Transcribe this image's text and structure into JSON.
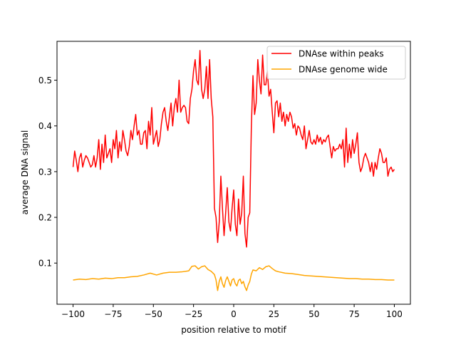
{
  "chart_data": {
    "type": "line",
    "xlabel": "position relative to motif",
    "ylabel": "average DNA signal",
    "xlim": [
      -110,
      110
    ],
    "ylim": [
      0.01,
      0.585
    ],
    "xticks": [
      -100,
      -75,
      -50,
      -25,
      0,
      25,
      50,
      75,
      100
    ],
    "yticks": [
      0.1,
      0.2,
      0.3,
      0.4,
      0.5
    ],
    "ytick_labels": [
      "0.1",
      "0.2",
      "0.3",
      "0.4",
      "0.5"
    ],
    "grid": false,
    "legend": {
      "placement": "top-right"
    },
    "series": [
      {
        "name": "DNAse within peaks",
        "color": "#ff0000",
        "points": [
          [
            -100,
            0.31
          ],
          [
            -99,
            0.345
          ],
          [
            -98,
            0.325
          ],
          [
            -97,
            0.3
          ],
          [
            -96,
            0.33
          ],
          [
            -95,
            0.34
          ],
          [
            -94,
            0.31
          ],
          [
            -93,
            0.325
          ],
          [
            -92,
            0.335
          ],
          [
            -91,
            0.33
          ],
          [
            -90,
            0.32
          ],
          [
            -89,
            0.31
          ],
          [
            -88,
            0.315
          ],
          [
            -87,
            0.335
          ],
          [
            -86,
            0.31
          ],
          [
            -85,
            0.33
          ],
          [
            -84,
            0.37
          ],
          [
            -83,
            0.305
          ],
          [
            -82,
            0.36
          ],
          [
            -81,
            0.32
          ],
          [
            -80,
            0.38
          ],
          [
            -79,
            0.33
          ],
          [
            -78,
            0.34
          ],
          [
            -77,
            0.35
          ],
          [
            -76,
            0.32
          ],
          [
            -75,
            0.37
          ],
          [
            -74,
            0.35
          ],
          [
            -73,
            0.39
          ],
          [
            -72,
            0.33
          ],
          [
            -71,
            0.365
          ],
          [
            -70,
            0.345
          ],
          [
            -69,
            0.39
          ],
          [
            -68,
            0.37
          ],
          [
            -67,
            0.345
          ],
          [
            -66,
            0.335
          ],
          [
            -65,
            0.355
          ],
          [
            -64,
            0.39
          ],
          [
            -63,
            0.37
          ],
          [
            -62,
            0.4
          ],
          [
            -61,
            0.425
          ],
          [
            -60,
            0.38
          ],
          [
            -59,
            0.39
          ],
          [
            -58,
            0.36
          ],
          [
            -57,
            0.36
          ],
          [
            -56,
            0.385
          ],
          [
            -55,
            0.39
          ],
          [
            -54,
            0.35
          ],
          [
            -53,
            0.41
          ],
          [
            -52,
            0.38
          ],
          [
            -51,
            0.44
          ],
          [
            -50,
            0.36
          ],
          [
            -49,
            0.375
          ],
          [
            -48,
            0.39
          ],
          [
            -47,
            0.355
          ],
          [
            -46,
            0.37
          ],
          [
            -45,
            0.405
          ],
          [
            -44,
            0.43
          ],
          [
            -43,
            0.44
          ],
          [
            -42,
            0.41
          ],
          [
            -41,
            0.39
          ],
          [
            -40,
            0.42
          ],
          [
            -39,
            0.45
          ],
          [
            -38,
            0.4
          ],
          [
            -37,
            0.44
          ],
          [
            -36,
            0.46
          ],
          [
            -35,
            0.43
          ],
          [
            -34,
            0.5
          ],
          [
            -33,
            0.43
          ],
          [
            -32,
            0.44
          ],
          [
            -31,
            0.445
          ],
          [
            -30,
            0.44
          ],
          [
            -29,
            0.41
          ],
          [
            -28,
            0.405
          ],
          [
            -27,
            0.46
          ],
          [
            -26,
            0.48
          ],
          [
            -25,
            0.52
          ],
          [
            -24,
            0.545
          ],
          [
            -23,
            0.5
          ],
          [
            -22,
            0.49
          ],
          [
            -21,
            0.565
          ],
          [
            -20,
            0.48
          ],
          [
            -19,
            0.46
          ],
          [
            -18,
            0.48
          ],
          [
            -17,
            0.53
          ],
          [
            -16,
            0.46
          ],
          [
            -15,
            0.545
          ],
          [
            -14,
            0.46
          ],
          [
            -13,
            0.42
          ],
          [
            -12,
            0.22
          ],
          [
            -11,
            0.2
          ],
          [
            -10,
            0.145
          ],
          [
            -9,
            0.19
          ],
          [
            -8,
            0.29
          ],
          [
            -7,
            0.22
          ],
          [
            -6,
            0.16
          ],
          [
            -5,
            0.21
          ],
          [
            -4,
            0.265
          ],
          [
            -3,
            0.19
          ],
          [
            -2,
            0.17
          ],
          [
            -1,
            0.22
          ],
          [
            0,
            0.26
          ],
          [
            1,
            0.185
          ],
          [
            2,
            0.16
          ],
          [
            3,
            0.24
          ],
          [
            4,
            0.185
          ],
          [
            5,
            0.21
          ],
          [
            6,
            0.29
          ],
          [
            7,
            0.165
          ],
          [
            8,
            0.135
          ],
          [
            9,
            0.2
          ],
          [
            10,
            0.21
          ],
          [
            11,
            0.4
          ],
          [
            12,
            0.51
          ],
          [
            13,
            0.425
          ],
          [
            14,
            0.45
          ],
          [
            15,
            0.545
          ],
          [
            16,
            0.5
          ],
          [
            17,
            0.47
          ],
          [
            18,
            0.555
          ],
          [
            19,
            0.49
          ],
          [
            20,
            0.49
          ],
          [
            21,
            0.52
          ],
          [
            22,
            0.465
          ],
          [
            23,
            0.48
          ],
          [
            24,
            0.43
          ],
          [
            25,
            0.385
          ],
          [
            26,
            0.45
          ],
          [
            27,
            0.455
          ],
          [
            28,
            0.42
          ],
          [
            29,
            0.45
          ],
          [
            30,
            0.41
          ],
          [
            31,
            0.43
          ],
          [
            32,
            0.4
          ],
          [
            33,
            0.425
          ],
          [
            34,
            0.41
          ],
          [
            35,
            0.43
          ],
          [
            36,
            0.42
          ],
          [
            37,
            0.395
          ],
          [
            38,
            0.405
          ],
          [
            39,
            0.38
          ],
          [
            40,
            0.4
          ],
          [
            41,
            0.395
          ],
          [
            42,
            0.38
          ],
          [
            43,
            0.37
          ],
          [
            44,
            0.4
          ],
          [
            45,
            0.35
          ],
          [
            46,
            0.37
          ],
          [
            47,
            0.39
          ],
          [
            48,
            0.365
          ],
          [
            49,
            0.36
          ],
          [
            50,
            0.37
          ],
          [
            51,
            0.36
          ],
          [
            52,
            0.38
          ],
          [
            53,
            0.365
          ],
          [
            54,
            0.375
          ],
          [
            55,
            0.36
          ],
          [
            56,
            0.37
          ],
          [
            57,
            0.365
          ],
          [
            58,
            0.375
          ],
          [
            59,
            0.38
          ],
          [
            60,
            0.355
          ],
          [
            61,
            0.33
          ],
          [
            62,
            0.355
          ],
          [
            63,
            0.345
          ],
          [
            64,
            0.35
          ],
          [
            65,
            0.35
          ],
          [
            66,
            0.36
          ],
          [
            67,
            0.35
          ],
          [
            68,
            0.37
          ],
          [
            69,
            0.31
          ],
          [
            70,
            0.395
          ],
          [
            71,
            0.32
          ],
          [
            72,
            0.36
          ],
          [
            73,
            0.33
          ],
          [
            74,
            0.37
          ],
          [
            75,
            0.34
          ],
          [
            76,
            0.36
          ],
          [
            77,
            0.385
          ],
          [
            78,
            0.32
          ],
          [
            79,
            0.3
          ],
          [
            80,
            0.31
          ],
          [
            81,
            0.33
          ],
          [
            82,
            0.34
          ],
          [
            83,
            0.33
          ],
          [
            84,
            0.32
          ],
          [
            85,
            0.3
          ],
          [
            86,
            0.32
          ],
          [
            87,
            0.29
          ],
          [
            88,
            0.32
          ],
          [
            89,
            0.305
          ],
          [
            90,
            0.33
          ],
          [
            91,
            0.35
          ],
          [
            92,
            0.34
          ],
          [
            93,
            0.32
          ],
          [
            94,
            0.32
          ],
          [
            95,
            0.33
          ],
          [
            96,
            0.29
          ],
          [
            97,
            0.305
          ],
          [
            98,
            0.31
          ],
          [
            99,
            0.3
          ],
          [
            100,
            0.305
          ]
        ]
      },
      {
        "name": "DNAse genome wide",
        "color": "#ffa500",
        "points": [
          [
            -100,
            0.063
          ],
          [
            -96,
            0.065
          ],
          [
            -92,
            0.064
          ],
          [
            -88,
            0.066
          ],
          [
            -84,
            0.065
          ],
          [
            -80,
            0.067
          ],
          [
            -76,
            0.066
          ],
          [
            -72,
            0.068
          ],
          [
            -68,
            0.068
          ],
          [
            -64,
            0.07
          ],
          [
            -60,
            0.071
          ],
          [
            -56,
            0.074
          ],
          [
            -52,
            0.078
          ],
          [
            -48,
            0.074
          ],
          [
            -44,
            0.078
          ],
          [
            -40,
            0.08
          ],
          [
            -36,
            0.08
          ],
          [
            -32,
            0.081
          ],
          [
            -28,
            0.083
          ],
          [
            -26,
            0.093
          ],
          [
            -24,
            0.094
          ],
          [
            -22,
            0.087
          ],
          [
            -20,
            0.092
          ],
          [
            -18,
            0.094
          ],
          [
            -16,
            0.086
          ],
          [
            -14,
            0.082
          ],
          [
            -12,
            0.075
          ],
          [
            -11,
            0.063
          ],
          [
            -10,
            0.04
          ],
          [
            -9,
            0.06
          ],
          [
            -8,
            0.07
          ],
          [
            -7,
            0.055
          ],
          [
            -6,
            0.047
          ],
          [
            -5,
            0.062
          ],
          [
            -4,
            0.07
          ],
          [
            -3,
            0.06
          ],
          [
            -2,
            0.05
          ],
          [
            -1,
            0.063
          ],
          [
            0,
            0.066
          ],
          [
            1,
            0.055
          ],
          [
            2,
            0.05
          ],
          [
            3,
            0.062
          ],
          [
            4,
            0.065
          ],
          [
            5,
            0.055
          ],
          [
            6,
            0.06
          ],
          [
            7,
            0.048
          ],
          [
            8,
            0.04
          ],
          [
            9,
            0.052
          ],
          [
            10,
            0.06
          ],
          [
            11,
            0.076
          ],
          [
            12,
            0.085
          ],
          [
            14,
            0.083
          ],
          [
            16,
            0.09
          ],
          [
            18,
            0.086
          ],
          [
            20,
            0.092
          ],
          [
            22,
            0.094
          ],
          [
            24,
            0.088
          ],
          [
            26,
            0.083
          ],
          [
            28,
            0.081
          ],
          [
            32,
            0.078
          ],
          [
            36,
            0.077
          ],
          [
            40,
            0.075
          ],
          [
            44,
            0.073
          ],
          [
            48,
            0.072
          ],
          [
            52,
            0.071
          ],
          [
            56,
            0.07
          ],
          [
            60,
            0.069
          ],
          [
            64,
            0.068
          ],
          [
            68,
            0.067
          ],
          [
            72,
            0.066
          ],
          [
            76,
            0.066
          ],
          [
            80,
            0.065
          ],
          [
            84,
            0.065
          ],
          [
            88,
            0.064
          ],
          [
            92,
            0.064
          ],
          [
            96,
            0.063
          ],
          [
            100,
            0.063
          ]
        ]
      }
    ]
  }
}
